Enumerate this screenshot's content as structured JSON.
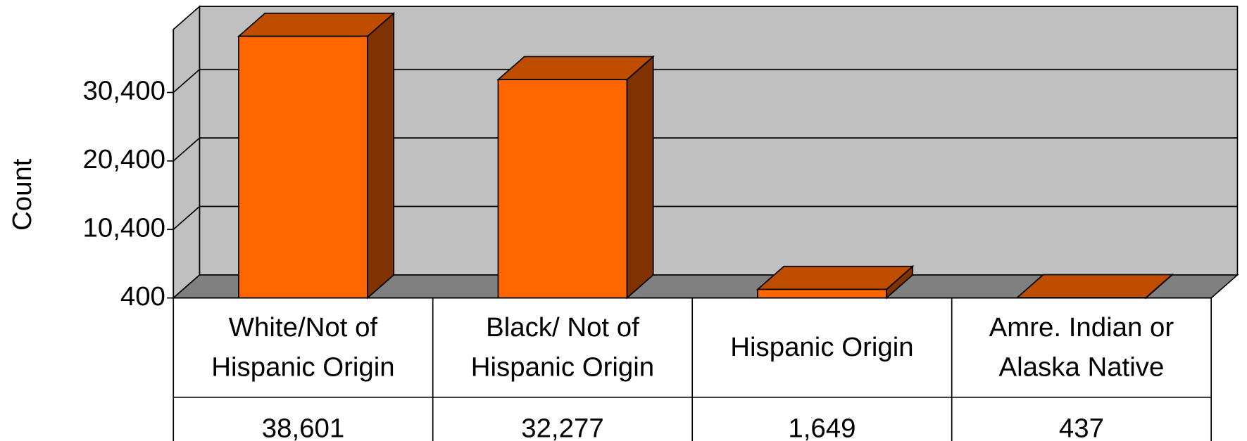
{
  "chart_data": {
    "type": "bar3d",
    "y_label": "Count",
    "categories": [
      "White/Not of Hispanic Origin",
      "Black/ Not of Hispanic Origin",
      "Hispanic Origin",
      "Amre. Indian or Alaska Native"
    ],
    "values": [
      38601,
      32277,
      1649,
      437
    ],
    "value_labels": [
      "38,601",
      "32,277",
      "1,649",
      "437"
    ],
    "color": "#ff6600",
    "ylim": [
      400,
      39600
    ],
    "yticks": [
      {
        "value": 400,
        "label": "400"
      },
      {
        "value": 10400,
        "label": "10,400"
      },
      {
        "value": 20400,
        "label": "20,400"
      },
      {
        "value": 30400,
        "label": "30,400"
      }
    ],
    "grid": true
  }
}
